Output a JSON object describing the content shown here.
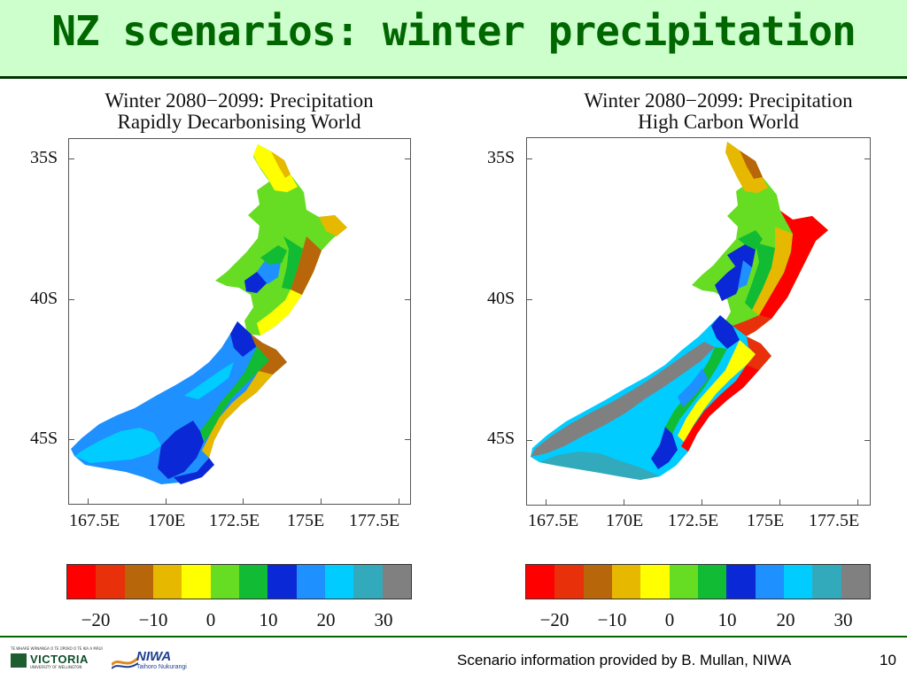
{
  "slide": {
    "title": "NZ scenarios: winter precipitation",
    "footer_text": "Scenario information provided by B. Mullan, NIWA",
    "page_number": "10"
  },
  "logos": {
    "victoria_tagline": "TE WHARE WĀNANGA O TE ŪPOKO O TE IKA A MĀUI",
    "victoria_name": "VICTORIA",
    "victoria_sub": "UNIVERSITY OF WELLINGTON",
    "niwa_name": "NIWA",
    "niwa_sub": "Taihoro Nukurangi"
  },
  "colors": {
    "title_bg": "#ccffcc",
    "title_fg": "#006600",
    "footer_line": "#006600"
  },
  "panels": [
    {
      "title_line1": "Winter 2080−2099: Precipitation",
      "title_line2": "Rapidly Decarbonising World",
      "y_ticks": [
        "35S",
        "40S",
        "45S"
      ],
      "x_ticks": [
        "167.5E",
        "170E",
        "172.5E",
        "175E",
        "177.5E"
      ]
    },
    {
      "title_line1": "Winter 2080−2099: Precipitation",
      "title_line2": "High Carbon World",
      "y_ticks": [
        "35S",
        "40S",
        "45S"
      ],
      "x_ticks": [
        "167.5E",
        "170E",
        "172.5E",
        "175E",
        "177.5E"
      ]
    }
  ],
  "colorbar": {
    "colors": [
      "#ff0000",
      "#e8300a",
      "#b8660a",
      "#e6b800",
      "#ffff00",
      "#66dd22",
      "#11bb33",
      "#0a28d6",
      "#1e90ff",
      "#00ccff",
      "#33aabb",
      "#808080"
    ],
    "labels": [
      "−20",
      "−10",
      "0",
      "10",
      "20",
      "30"
    ]
  }
}
